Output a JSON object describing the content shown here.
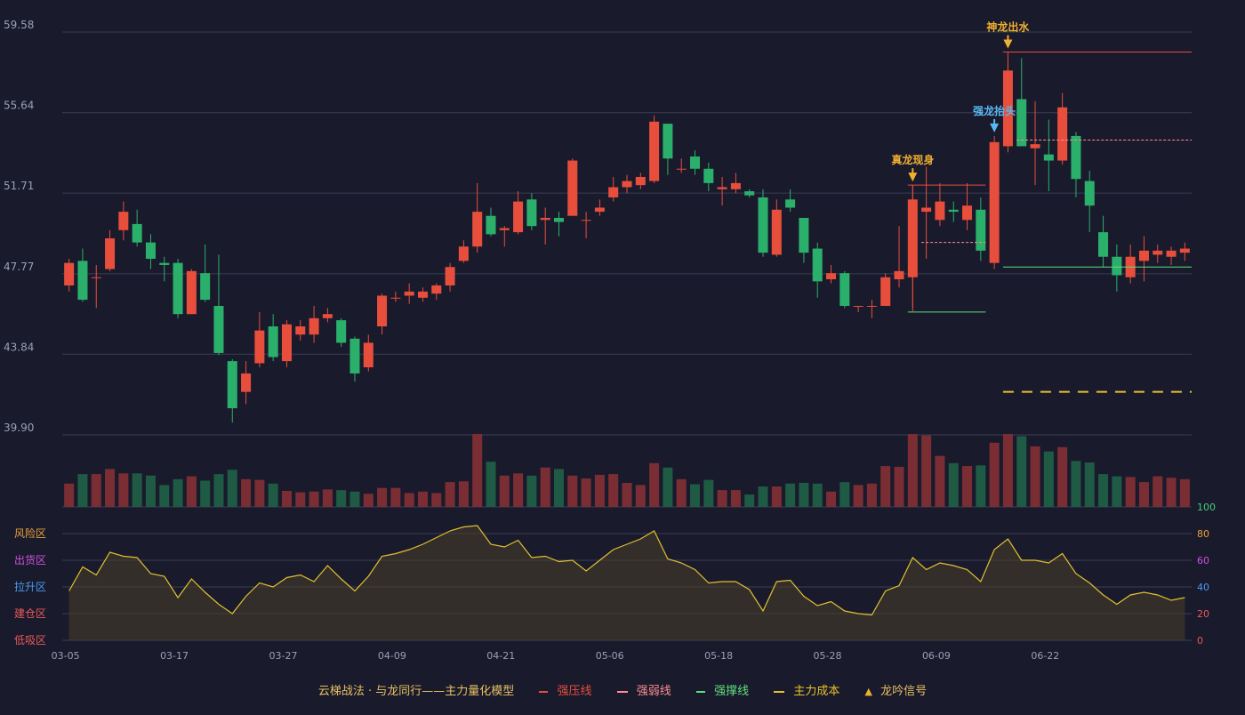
{
  "colors": {
    "up": "#e84e3c",
    "down": "#2bb06c",
    "vol_up": "#7a2e33",
    "vol_down": "#1e5a44",
    "strong_pressure": "#e84e3c",
    "weak_pressure": "#ff8f8f",
    "strong_support": "#5fe07a",
    "main_cost": "#e8c12a",
    "signal": "#f0b030",
    "signal_blue": "#5ab8f0",
    "oscillator": "#e0c030",
    "grid": "#3a3d52",
    "axis_text": "#9aa0b5"
  },
  "chart_data": [
    {
      "type": "candlestick",
      "price_axis": {
        "ticks": [
          "59.58",
          "55.64",
          "51.71",
          "47.77",
          "43.84",
          "39.90"
        ],
        "ylim": [
          39.9,
          59.58
        ]
      },
      "dates": [
        "03-05",
        "03-06",
        "03-07",
        "03-10",
        "03-11",
        "03-12",
        "03-13",
        "03-14",
        "03-17",
        "03-18",
        "03-19",
        "03-20",
        "03-21",
        "03-24",
        "03-25",
        "03-26",
        "03-27",
        "03-28",
        "03-31",
        "04-01",
        "04-02",
        "04-03",
        "04-07",
        "04-08",
        "04-09",
        "04-10",
        "04-11",
        "04-14",
        "04-15",
        "04-16",
        "04-17",
        "04-18",
        "04-21",
        "04-22",
        "04-23",
        "04-24",
        "04-25",
        "04-28",
        "04-29",
        "04-30",
        "05-01",
        "05-06",
        "05-07",
        "05-08",
        "05-09",
        "05-12",
        "05-13",
        "05-14",
        "05-15",
        "05-16",
        "05-18",
        "05-19",
        "05-20",
        "05-21",
        "05-22",
        "05-23",
        "05-26",
        "05-27",
        "05-28",
        "05-29",
        "06-03",
        "06-04",
        "06-05",
        "06-06",
        "06-09",
        "06-10",
        "06-11",
        "06-12",
        "06-13",
        "06-16",
        "06-17",
        "06-18",
        "06-19",
        "06-20",
        "06-22",
        "06-23",
        "06-24",
        "06-25",
        "06-26",
        "06-27",
        "06-30",
        "07-01",
        "07-02"
      ],
      "x_ticks": [
        "03-05",
        "03-17",
        "03-27",
        "04-09",
        "04-21",
        "05-06",
        "05-18",
        "05-28",
        "06-09",
        "06-22"
      ],
      "x_tick_index": [
        0,
        8,
        16,
        24,
        32,
        40,
        48,
        56,
        64,
        72
      ],
      "ohlc": [
        [
          47.2,
          48.3,
          46.9,
          48.5
        ],
        [
          48.4,
          46.5,
          46.4,
          49.0
        ],
        [
          47.6,
          47.6,
          46.1,
          48.2
        ],
        [
          48.0,
          49.5,
          47.9,
          49.9
        ],
        [
          49.9,
          50.8,
          49.4,
          51.3
        ],
        [
          50.2,
          49.3,
          49.1,
          50.9
        ],
        [
          49.3,
          48.5,
          48.0,
          49.7
        ],
        [
          48.3,
          48.2,
          47.4,
          48.6
        ],
        [
          48.3,
          45.8,
          45.6,
          48.5
        ],
        [
          45.8,
          47.9,
          45.8,
          48.0
        ],
        [
          47.8,
          46.5,
          46.4,
          49.2
        ],
        [
          46.2,
          43.9,
          43.8,
          48.7
        ],
        [
          43.5,
          41.2,
          40.5,
          43.6
        ],
        [
          42.0,
          42.9,
          41.4,
          43.5
        ],
        [
          43.4,
          45.0,
          43.2,
          45.9
        ],
        [
          45.2,
          43.7,
          43.5,
          45.8
        ],
        [
          43.5,
          45.3,
          43.2,
          45.5
        ],
        [
          44.8,
          45.2,
          44.5,
          45.5
        ],
        [
          44.8,
          45.6,
          44.4,
          46.2
        ],
        [
          45.6,
          45.8,
          45.4,
          46.1
        ],
        [
          45.5,
          44.4,
          44.2,
          45.6
        ],
        [
          44.6,
          42.9,
          42.5,
          44.7
        ],
        [
          43.2,
          44.4,
          43.0,
          44.8
        ],
        [
          45.2,
          46.7,
          44.8,
          46.8
        ],
        [
          46.6,
          46.6,
          46.4,
          46.9
        ],
        [
          46.7,
          46.9,
          46.3,
          47.3
        ],
        [
          46.6,
          46.9,
          46.4,
          47.1
        ],
        [
          46.8,
          47.2,
          46.5,
          47.3
        ],
        [
          47.2,
          48.1,
          46.9,
          48.3
        ],
        [
          48.4,
          49.1,
          48.3,
          49.4
        ],
        [
          49.1,
          50.8,
          48.8,
          52.2
        ],
        [
          50.6,
          49.7,
          49.6,
          51.0
        ],
        [
          49.9,
          50.0,
          49.1,
          50.1
        ],
        [
          49.8,
          51.3,
          49.7,
          51.8
        ],
        [
          51.4,
          50.1,
          49.9,
          51.7
        ],
        [
          50.4,
          50.5,
          49.2,
          51.0
        ],
        [
          50.5,
          50.3,
          49.6,
          50.8
        ],
        [
          50.6,
          53.3,
          50.6,
          53.4
        ],
        [
          50.4,
          50.4,
          49.5,
          50.8
        ],
        [
          50.8,
          51.0,
          50.6,
          51.4
        ],
        [
          51.5,
          52.0,
          51.3,
          52.5
        ],
        [
          52.0,
          52.3,
          51.7,
          52.6
        ],
        [
          52.1,
          52.5,
          51.9,
          52.7
        ],
        [
          52.3,
          55.2,
          52.2,
          55.5
        ],
        [
          55.1,
          53.4,
          52.6,
          55.0
        ],
        [
          52.9,
          52.9,
          52.7,
          53.4
        ],
        [
          53.5,
          52.9,
          52.6,
          53.8
        ],
        [
          52.9,
          52.2,
          51.8,
          53.2
        ],
        [
          51.9,
          52.0,
          51.1,
          52.5
        ],
        [
          51.9,
          52.2,
          51.7,
          52.7
        ],
        [
          51.8,
          51.6,
          51.5,
          51.9
        ],
        [
          51.5,
          48.8,
          48.6,
          51.9
        ],
        [
          48.7,
          50.9,
          48.6,
          51.4
        ],
        [
          51.4,
          51.0,
          50.8,
          51.9
        ],
        [
          50.5,
          48.8,
          48.3,
          50.5
        ],
        [
          49.0,
          47.4,
          46.6,
          49.3
        ],
        [
          47.5,
          47.8,
          47.3,
          48.2
        ],
        [
          47.8,
          46.2,
          46.1,
          47.9
        ],
        [
          46.2,
          46.2,
          45.9,
          46.2
        ],
        [
          46.2,
          46.2,
          45.6,
          46.5
        ],
        [
          46.2,
          47.6,
          46.2,
          47.8
        ],
        [
          47.5,
          47.9,
          47.1,
          50.1
        ],
        [
          47.6,
          51.4,
          46.1,
          52.1
        ],
        [
          50.8,
          51.0,
          48.5,
          53.0
        ],
        [
          50.4,
          51.3,
          50.1,
          52.2
        ],
        [
          50.9,
          50.8,
          50.3,
          51.3
        ],
        [
          50.4,
          51.1,
          49.9,
          52.2
        ],
        [
          50.9,
          48.9,
          48.4,
          51.5
        ],
        [
          48.3,
          54.2,
          48.0,
          54.5
        ],
        [
          54.0,
          57.7,
          53.7,
          58.0
        ],
        [
          56.3,
          54.0,
          54.0,
          58.3
        ],
        [
          53.9,
          54.1,
          52.1,
          56.2
        ],
        [
          53.6,
          53.3,
          51.8,
          55.3
        ],
        [
          53.3,
          55.9,
          53.1,
          56.6
        ],
        [
          54.5,
          52.4,
          51.5,
          54.7
        ],
        [
          52.3,
          51.1,
          49.8,
          52.8
        ],
        [
          49.8,
          48.6,
          48.1,
          50.6
        ],
        [
          48.6,
          47.7,
          46.9,
          49.2
        ],
        [
          47.6,
          48.6,
          47.3,
          49.2
        ],
        [
          48.4,
          48.9,
          47.4,
          49.6
        ],
        [
          48.7,
          48.9,
          48.3,
          49.2
        ],
        [
          48.6,
          48.9,
          48.2,
          49.1
        ],
        [
          48.8,
          49.0,
          48.4,
          49.3
        ]
      ],
      "volume": [
        32,
        45,
        45,
        52,
        46,
        46,
        43,
        30,
        38,
        42,
        36,
        45,
        51,
        38,
        37,
        32,
        22,
        20,
        21,
        24,
        23,
        21,
        18,
        26,
        26,
        19,
        21,
        19,
        34,
        35,
        100,
        62,
        43,
        46,
        43,
        54,
        52,
        43,
        39,
        44,
        45,
        33,
        30,
        60,
        54,
        38,
        31,
        37,
        23,
        23,
        17,
        28,
        28,
        32,
        33,
        32,
        21,
        34,
        30,
        32,
        56,
        55,
        100,
        98,
        70,
        60,
        56,
        57,
        88,
        100,
        97,
        83,
        76,
        82,
        63,
        61,
        45,
        42,
        41,
        34,
        42,
        40,
        38
      ],
      "annotations": [
        {
          "label": "神龙出水",
          "index": 69,
          "anchor": "high",
          "color": "signal"
        },
        {
          "label": "强龙抬头",
          "index": 68,
          "anchor": "high",
          "color": "signal_blue"
        },
        {
          "label": "真龙现身",
          "index": 62,
          "anchor": "high",
          "color": "signal"
        }
      ],
      "levels": [
        {
          "type": "strong_pressure",
          "value": 58.6,
          "from": 69,
          "to": 82
        },
        {
          "type": "strong_pressure",
          "value": 52.1,
          "from": 62,
          "to": 67
        },
        {
          "type": "weak_pressure",
          "value": 54.3,
          "from": 70,
          "to": 82
        },
        {
          "type": "weak_pressure",
          "value": 49.3,
          "from": 63,
          "to": 67
        },
        {
          "type": "strong_support",
          "value": 48.1,
          "from": 69,
          "to": 82
        },
        {
          "type": "strong_support",
          "value": 45.9,
          "from": 62,
          "to": 67
        },
        {
          "type": "main_cost",
          "value": 42.0,
          "from": 69,
          "to": 82
        }
      ]
    },
    {
      "type": "line",
      "name": "主力量化模型",
      "y_ticks": [
        "0",
        "20",
        "40",
        "60",
        "80",
        "100"
      ],
      "ylim": [
        0,
        100
      ],
      "zones": [
        "风险区",
        "出货区",
        "拉升区",
        "建仓区",
        "低吸区"
      ],
      "values": [
        37,
        55,
        49,
        66,
        63,
        62,
        50,
        48,
        32,
        46,
        36,
        27,
        20,
        33,
        43,
        40,
        47,
        49,
        44,
        56,
        46,
        37,
        48,
        63,
        65,
        68,
        72,
        77,
        82,
        85,
        86,
        72,
        70,
        75,
        62,
        63,
        59,
        60,
        52,
        60,
        68,
        72,
        76,
        82,
        61,
        58,
        53,
        43,
        44,
        44,
        38,
        22,
        44,
        45,
        33,
        26,
        29,
        22,
        20,
        19,
        37,
        41,
        62,
        53,
        58,
        56,
        53,
        44,
        68,
        76,
        60,
        60,
        58,
        65,
        50,
        43,
        34,
        27,
        34,
        36,
        34,
        30,
        32
      ]
    }
  ],
  "legend": {
    "title": "云梯战法 · 与龙同行——主力量化模型",
    "strong_pressure": "强压线",
    "weak_pressure": "强弱线",
    "strong_support": "强撑线",
    "main_cost": "主力成本",
    "signal": "龙吟信号"
  }
}
